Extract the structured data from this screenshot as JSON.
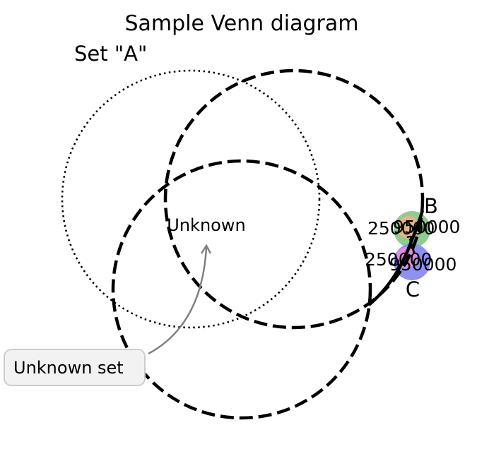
{
  "title": "Sample Venn diagram",
  "sets": {
    "a": {
      "label": "Set \"A\"",
      "style": "dotted"
    },
    "b": {
      "label": "B",
      "style": "dashed"
    },
    "c": {
      "label": "C",
      "style": "dashed"
    }
  },
  "region_labels": {
    "unknown": "Unknown",
    "top_left_value": "250000",
    "top_right_value": "950000",
    "middle": "1",
    "bottom_left_value": "250000",
    "bottom_right_value": "950000"
  },
  "annotation": {
    "text": "Unknown set",
    "box_fill": "#f2f2f2",
    "box_stroke": "#cccccc",
    "arrow_color": "#808080"
  },
  "patch_colors": {
    "green": "#8fcc8f",
    "orange": "#e6b48a",
    "pink": "#e08ce0",
    "blue": "#9090f0"
  }
}
